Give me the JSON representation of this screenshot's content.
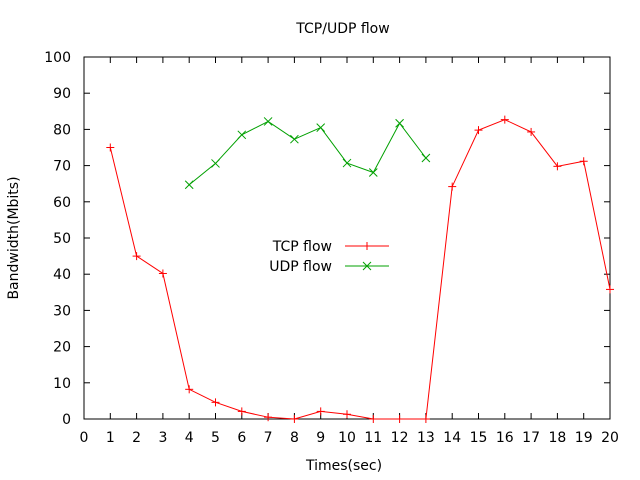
{
  "chart_data": {
    "type": "line",
    "title": "TCP/UDP flow",
    "xlabel": "Times(sec)",
    "ylabel": "Bandwidth(Mbits)",
    "xlim": [
      0,
      20
    ],
    "ylim": [
      0,
      100
    ],
    "xticks": [
      0,
      1,
      2,
      3,
      4,
      5,
      6,
      7,
      8,
      9,
      10,
      11,
      12,
      13,
      14,
      15,
      16,
      17,
      18,
      19,
      20
    ],
    "yticks": [
      0,
      10,
      20,
      30,
      40,
      50,
      60,
      70,
      80,
      90,
      100
    ],
    "grid": false,
    "legend_position": "center",
    "series": [
      {
        "name": "TCP flow",
        "color": "#ff0000",
        "marker": "plus",
        "x": [
          1,
          2,
          3,
          4,
          5,
          6,
          7,
          8,
          9,
          10,
          11,
          12,
          13,
          14,
          15,
          16,
          17,
          18,
          19,
          20
        ],
        "y": [
          75,
          45,
          40.2,
          8.2,
          4.6,
          2.1,
          0.5,
          0,
          2.1,
          1.3,
          0,
          0,
          0,
          64.2,
          79.8,
          82.7,
          79.3,
          69.8,
          71.2,
          35.8
        ]
      },
      {
        "name": "UDP flow",
        "color": "#00a000",
        "marker": "x",
        "x": [
          4,
          5,
          6,
          7,
          8,
          9,
          10,
          11,
          12,
          13
        ],
        "y": [
          64.7,
          70.6,
          78.5,
          82.2,
          77.3,
          80.5,
          70.7,
          68.1,
          81.7,
          72.1
        ]
      }
    ]
  }
}
